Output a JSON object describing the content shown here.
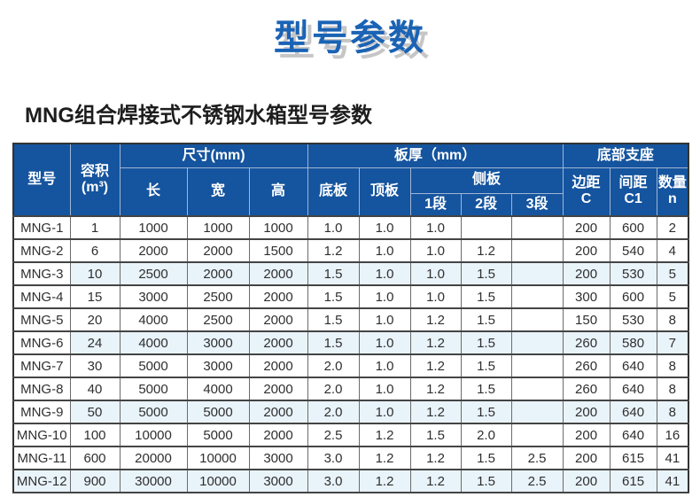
{
  "page": {
    "title": "型号参数",
    "subtitle": "MNG组合焊接式不锈钢水箱型号参数"
  },
  "table": {
    "header": {
      "model": "型号",
      "volume_line1": "容积",
      "volume_line2": "(m³)",
      "size_group": "尺寸(mm)",
      "length": "长",
      "width": "宽",
      "height": "高",
      "thickness_group": "板厚（mm）",
      "bottom_plate": "底板",
      "top_plate": "顶板",
      "side_plate": "侧板",
      "seg1": "1段",
      "seg2": "2段",
      "seg3": "3段",
      "support_group": "底部支座",
      "edge_line1": "边距",
      "edge_line2": "C",
      "spacing_line1": "间距",
      "spacing_line2": "C1",
      "qty_line1": "数量",
      "qty_line2": "n"
    },
    "rows": [
      [
        "MNG-1",
        "1",
        "1000",
        "1000",
        "1000",
        "1.0",
        "1.0",
        "1.0",
        "",
        "",
        "200",
        "600",
        "2"
      ],
      [
        "MNG-2",
        "6",
        "2000",
        "2000",
        "1500",
        "1.2",
        "1.0",
        "1.0",
        "1.2",
        "",
        "200",
        "540",
        "4"
      ],
      [
        "MNG-3",
        "10",
        "2500",
        "2000",
        "2000",
        "1.5",
        "1.0",
        "1.0",
        "1.5",
        "",
        "200",
        "530",
        "5"
      ],
      [
        "MNG-4",
        "15",
        "3000",
        "2500",
        "2000",
        "1.5",
        "1.0",
        "1.0",
        "1.5",
        "",
        "300",
        "600",
        "5"
      ],
      [
        "MNG-5",
        "20",
        "4000",
        "2500",
        "2000",
        "1.5",
        "1.0",
        "1.2",
        "1.5",
        "",
        "150",
        "530",
        "8"
      ],
      [
        "MNG-6",
        "24",
        "4000",
        "3000",
        "2000",
        "1.5",
        "1.0",
        "1.2",
        "1.5",
        "",
        "260",
        "580",
        "7"
      ],
      [
        "MNG-7",
        "30",
        "5000",
        "3000",
        "2000",
        "2.0",
        "1.0",
        "1.2",
        "1.5",
        "",
        "260",
        "640",
        "8"
      ],
      [
        "MNG-8",
        "40",
        "5000",
        "4000",
        "2000",
        "2.0",
        "1.0",
        "1.2",
        "1.5",
        "",
        "260",
        "640",
        "8"
      ],
      [
        "MNG-9",
        "50",
        "5000",
        "5000",
        "2000",
        "2.0",
        "1.0",
        "1.2",
        "1.5",
        "",
        "200",
        "640",
        "8"
      ],
      [
        "MNG-10",
        "100",
        "10000",
        "5000",
        "2000",
        "2.5",
        "1.2",
        "1.5",
        "2.0",
        "",
        "200",
        "640",
        "16"
      ],
      [
        "MNG-11",
        "600",
        "20000",
        "10000",
        "3000",
        "3.0",
        "1.2",
        "1.2",
        "1.5",
        "2.5",
        "200",
        "615",
        "41"
      ],
      [
        "MNG-12",
        "900",
        "30000",
        "10000",
        "3000",
        "3.0",
        "1.2",
        "1.2",
        "1.5",
        "2.5",
        "200",
        "615",
        "41"
      ]
    ]
  },
  "colors": {
    "header_bg": "#15549e",
    "title_blue": "#1a63b5",
    "title_shadow": "#c6c6c6",
    "row_tint": "#e9f3fa",
    "border_dark": "#444444",
    "outer_border": "#333333"
  }
}
